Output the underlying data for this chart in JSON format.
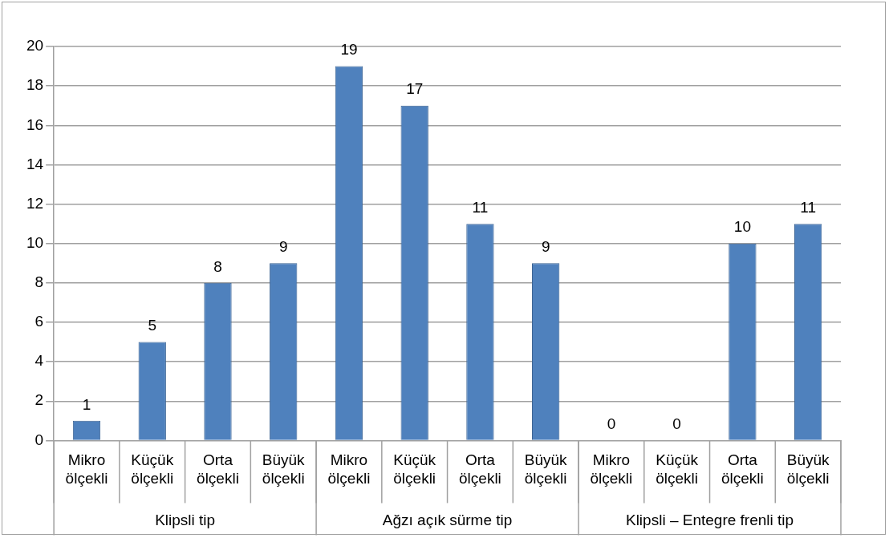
{
  "chart_data": {
    "type": "bar",
    "categories": [
      "Mikro ölçekli",
      "Küçük ölçekli",
      "Orta ölçekli",
      "Büyük ölçekli",
      "Mikro ölçekli",
      "Küçük ölçekli",
      "Orta ölçekli",
      "Büyük ölçekli",
      "Mikro ölçekli",
      "Küçük ölçekli",
      "Orta ölçekli",
      "Büyük ölçekli"
    ],
    "values": [
      1,
      5,
      8,
      9,
      19,
      17,
      11,
      9,
      0,
      0,
      10,
      11
    ],
    "color": "#4f81bd",
    "ylim": [
      0,
      20
    ],
    "yticks": [
      0,
      2,
      4,
      6,
      8,
      10,
      12,
      14,
      16,
      18,
      20
    ],
    "grid": "y",
    "data_labels": true,
    "annotations": [
      "Klipsli tip",
      "Ağzı açık sürme tip",
      "Klipsli – Entegre frenli tip"
    ]
  }
}
